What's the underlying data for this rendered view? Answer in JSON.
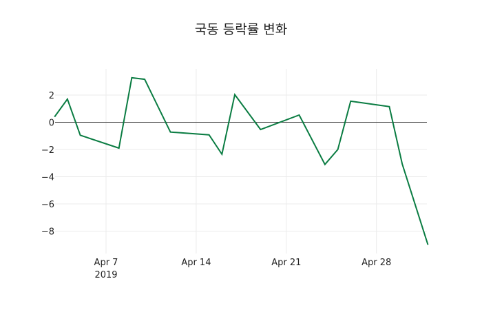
{
  "chart_data": {
    "type": "line",
    "title": "국동 등락률 변화",
    "xlabel": "",
    "ylabel": "",
    "x": [
      "2019-04-03",
      "2019-04-04",
      "2019-04-05",
      "2019-04-08",
      "2019-04-09",
      "2019-04-10",
      "2019-04-12",
      "2019-04-15",
      "2019-04-16",
      "2019-04-17",
      "2019-04-19",
      "2019-04-22",
      "2019-04-24",
      "2019-04-25",
      "2019-04-26",
      "2019-04-29",
      "2019-04-30",
      "2019-05-02"
    ],
    "series": [
      {
        "name": "등락률",
        "color": "#0a7c42",
        "values": [
          0.4,
          1.7,
          -0.95,
          -1.9,
          3.27,
          3.16,
          -0.72,
          -0.92,
          -2.35,
          2.03,
          -0.53,
          0.53,
          -3.1,
          -2.0,
          1.55,
          1.15,
          -3.06,
          -9.0
        ]
      }
    ],
    "yticks": [
      2,
      0,
      -2,
      -4,
      -6,
      -8
    ],
    "ytick_labels": [
      "2",
      "0",
      "−2",
      "−4",
      "−6",
      "−8"
    ],
    "xticks": [
      {
        "date": "2019-04-07",
        "label": "Apr 7",
        "sublabel": "2019"
      },
      {
        "date": "2019-04-14",
        "label": "Apr 14",
        "sublabel": ""
      },
      {
        "date": "2019-04-21",
        "label": "Apr 21",
        "sublabel": ""
      },
      {
        "date": "2019-04-28",
        "label": "Apr 28",
        "sublabel": ""
      }
    ],
    "ylim": [
      -9.65,
      3.92
    ],
    "grid": true,
    "zeroline": true
  }
}
